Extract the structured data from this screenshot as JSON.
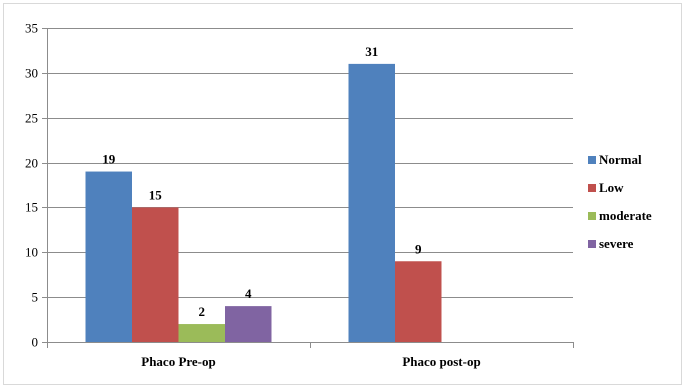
{
  "chart_data": {
    "type": "bar",
    "categories": [
      "Phaco Pre-op",
      "Phaco post-op"
    ],
    "series": [
      {
        "name": "Normal",
        "color": "#4F81BD",
        "values": [
          19,
          31
        ]
      },
      {
        "name": "Low",
        "color": "#C0504D",
        "values": [
          15,
          9
        ]
      },
      {
        "name": "moderate",
        "color": "#9BBB59",
        "values": [
          2,
          null
        ]
      },
      {
        "name": "severe",
        "color": "#8064A2",
        "values": [
          4,
          null
        ]
      }
    ],
    "title": "",
    "xlabel": "",
    "ylabel": "",
    "ylim": [
      0,
      35
    ],
    "yticks": [
      0,
      5,
      10,
      15,
      20,
      25,
      30,
      35
    ],
    "grid": true,
    "legend": "right"
  }
}
